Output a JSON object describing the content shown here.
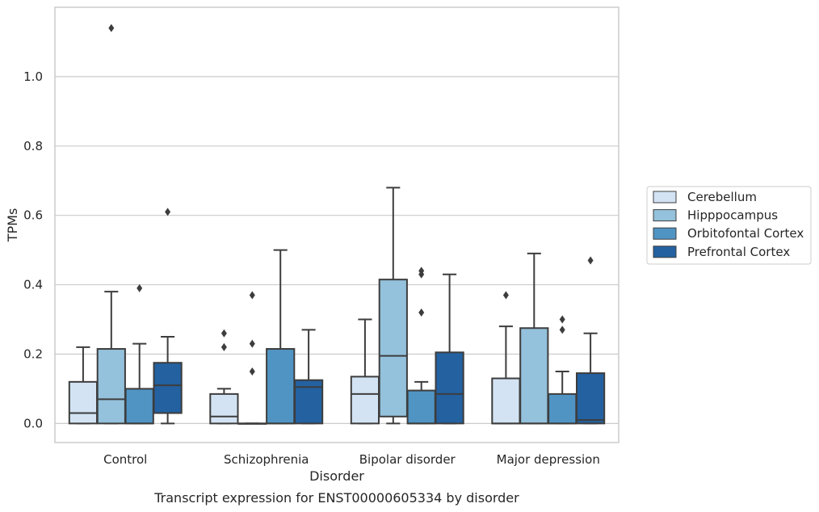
{
  "chart_data": {
    "type": "box",
    "xlabel": "Disorder",
    "ylabel": "TPMs",
    "caption": "Transcript expression for ENST00000605334 by disorder",
    "categories": [
      "Control",
      "Schizophrenia",
      "Bipolar disorder",
      "Major depression"
    ],
    "y_ticks": [
      "0.0",
      "0.2",
      "0.4",
      "0.6",
      "0.8",
      "1.0"
    ],
    "ylim": [
      -0.055,
      1.2
    ],
    "grid": "horizontal",
    "legend_position": "right",
    "series": [
      {
        "name": "Cerebellum",
        "color": "#d3e3f3",
        "boxes": [
          {
            "whislo": 0.0,
            "q1": 0.0,
            "med": 0.03,
            "q3": 0.12,
            "whishi": 0.22,
            "fliers": []
          },
          {
            "whislo": 0.0,
            "q1": 0.0,
            "med": 0.02,
            "q3": 0.085,
            "whishi": 0.1,
            "fliers": [
              0.26,
              0.22
            ]
          },
          {
            "whislo": 0.0,
            "q1": 0.0,
            "med": 0.085,
            "q3": 0.135,
            "whishi": 0.3,
            "fliers": []
          },
          {
            "whislo": 0.0,
            "q1": 0.0,
            "med": 0.0,
            "q3": 0.13,
            "whishi": 0.28,
            "fliers": [
              0.37
            ]
          }
        ]
      },
      {
        "name": "Hipppocampus",
        "color": "#94c1db",
        "boxes": [
          {
            "whislo": 0.0,
            "q1": 0.0,
            "med": 0.07,
            "q3": 0.215,
            "whishi": 0.38,
            "fliers": [
              1.14
            ]
          },
          {
            "whislo": 0.0,
            "q1": 0.0,
            "med": 0.0,
            "q3": 0.0,
            "whishi": 0.0,
            "fliers": [
              0.37,
              0.23,
              0.15
            ]
          },
          {
            "whislo": 0.0,
            "q1": 0.02,
            "med": 0.195,
            "q3": 0.415,
            "whishi": 0.68,
            "fliers": []
          },
          {
            "whislo": 0.0,
            "q1": 0.0,
            "med": 0.0,
            "q3": 0.275,
            "whishi": 0.49,
            "fliers": []
          }
        ]
      },
      {
        "name": "Orbitofontal Cortex",
        "color": "#5094c4",
        "boxes": [
          {
            "whislo": 0.0,
            "q1": 0.0,
            "med": 0.0,
            "q3": 0.1,
            "whishi": 0.23,
            "fliers": [
              0.39
            ]
          },
          {
            "whislo": 0.0,
            "q1": 0.0,
            "med": 0.0,
            "q3": 0.215,
            "whishi": 0.5,
            "fliers": []
          },
          {
            "whislo": 0.0,
            "q1": 0.0,
            "med": 0.0,
            "q3": 0.095,
            "whishi": 0.12,
            "fliers": [
              0.44,
              0.43,
              0.32
            ]
          },
          {
            "whislo": 0.0,
            "q1": 0.0,
            "med": 0.0,
            "q3": 0.085,
            "whishi": 0.15,
            "fliers": [
              0.3,
              0.27
            ]
          }
        ]
      },
      {
        "name": "Prefrontal Cortex",
        "color": "#2361a1",
        "boxes": [
          {
            "whislo": 0.0,
            "q1": 0.03,
            "med": 0.11,
            "q3": 0.175,
            "whishi": 0.25,
            "fliers": [
              0.61
            ]
          },
          {
            "whislo": 0.0,
            "q1": 0.0,
            "med": 0.105,
            "q3": 0.125,
            "whishi": 0.27,
            "fliers": []
          },
          {
            "whislo": 0.0,
            "q1": 0.0,
            "med": 0.085,
            "q3": 0.205,
            "whishi": 0.43,
            "fliers": []
          },
          {
            "whislo": 0.0,
            "q1": 0.0,
            "med": 0.01,
            "q3": 0.145,
            "whishi": 0.26,
            "fliers": [
              0.47
            ]
          }
        ]
      }
    ]
  }
}
